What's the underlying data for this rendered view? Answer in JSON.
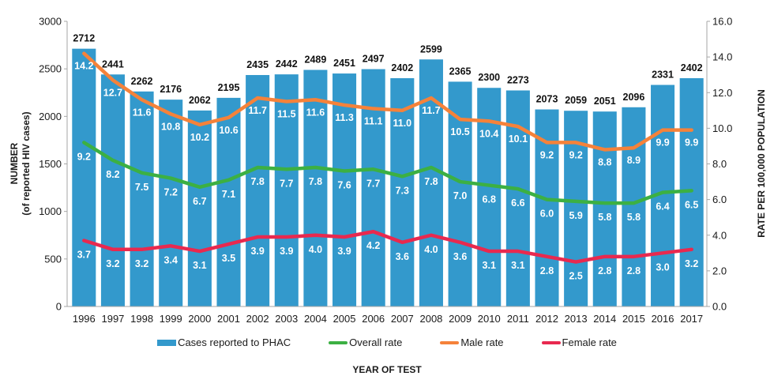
{
  "chart_data": {
    "type": "bar",
    "title": "",
    "categories": [
      "1996",
      "1997",
      "1998",
      "1999",
      "2000",
      "2001",
      "2002",
      "2003",
      "2004",
      "2005",
      "2006",
      "2007",
      "2008",
      "2009",
      "2010",
      "2011",
      "2012",
      "2013",
      "2014",
      "2015",
      "2016",
      "2017"
    ],
    "xlabel": "YEAR OF TEST",
    "ylabel": "NUMBER",
    "ylabel_sub": "(of reported HIV cases)",
    "y2label": "RATE PER 100,000 POPULATION",
    "ylim": [
      0,
      3000
    ],
    "y2lim": [
      0,
      16
    ],
    "yticks": [
      "0",
      "500",
      "1000",
      "1500",
      "2000",
      "2500",
      "3000"
    ],
    "y2ticks": [
      "0.0",
      "2.0",
      "4.0",
      "6.0",
      "8.0",
      "10.0",
      "12.0",
      "14.0",
      "16.0"
    ],
    "grid": false,
    "legend_position": "bottom",
    "series": [
      {
        "name": "Cases reported to PHAC",
        "type": "bar",
        "axis": "left",
        "color": "#3399cc",
        "values": [
          2712,
          2441,
          2262,
          2176,
          2062,
          2195,
          2435,
          2442,
          2489,
          2451,
          2497,
          2402,
          2599,
          2365,
          2300,
          2273,
          2073,
          2059,
          2051,
          2096,
          2331,
          2402
        ]
      },
      {
        "name": "Overall rate",
        "type": "line",
        "axis": "right",
        "color": "#3cb043",
        "values": [
          9.2,
          8.2,
          7.5,
          7.2,
          6.7,
          7.1,
          7.8,
          7.7,
          7.8,
          7.6,
          7.7,
          7.3,
          7.8,
          7.0,
          6.8,
          6.6,
          6.0,
          5.9,
          5.8,
          5.8,
          6.4,
          6.5
        ]
      },
      {
        "name": "Male rate",
        "type": "line",
        "axis": "right",
        "color": "#f5823a",
        "values": [
          14.2,
          12.7,
          11.6,
          10.8,
          10.2,
          10.6,
          11.7,
          11.5,
          11.6,
          11.3,
          11.1,
          11.0,
          11.7,
          10.5,
          10.4,
          10.1,
          9.2,
          9.2,
          8.8,
          8.9,
          9.9,
          9.9
        ]
      },
      {
        "name": "Female rate",
        "type": "line",
        "axis": "right",
        "color": "#e8294f",
        "values": [
          3.7,
          3.2,
          3.2,
          3.4,
          3.1,
          3.5,
          3.9,
          3.9,
          4.0,
          3.9,
          4.2,
          3.6,
          4.0,
          3.6,
          3.1,
          3.1,
          2.8,
          2.5,
          2.8,
          2.8,
          3.0,
          3.2
        ]
      }
    ]
  }
}
